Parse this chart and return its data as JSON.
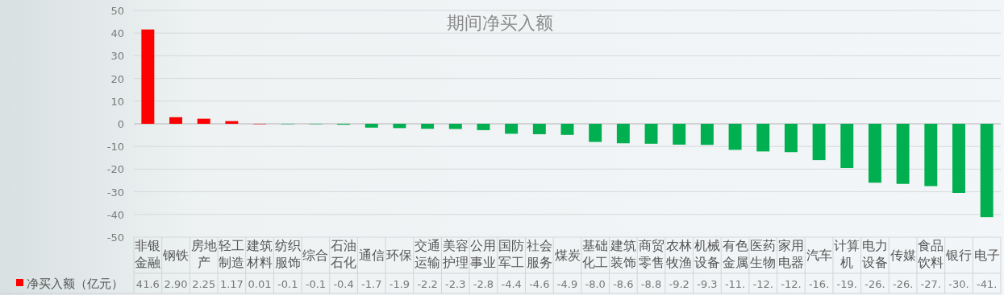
{
  "chart_data": {
    "type": "bar",
    "title": "期间净买入额",
    "categories": [
      "非银金融",
      "钢铁",
      "房地产",
      "轻工制造",
      "建筑材料",
      "纺织服饰",
      "综合",
      "石油石化",
      "通信",
      "环保",
      "交通运输",
      "美容护理",
      "公用事业",
      "国防军工",
      "社会服务",
      "煤炭",
      "基础化工",
      "建筑装饰",
      "商贸零售",
      "农林牧渔",
      "机械设备",
      "有色金属",
      "医药生物",
      "家用电器",
      "汽车",
      "计算机",
      "电力设备",
      "传媒",
      "食品饮料",
      "银行",
      "电子"
    ],
    "series": [
      {
        "name": "净买入额（亿元）",
        "color": "#ff0000",
        "values": [
          41.6,
          2.9,
          2.25,
          1.17,
          0.01,
          -0.1,
          -0.1,
          -0.4,
          -1.7,
          -1.9,
          -2.2,
          -2.3,
          -2.8,
          -4.4,
          -4.6,
          -4.9,
          -8.0,
          -8.6,
          -8.8,
          -9.2,
          -9.3,
          -11.5,
          -12.2,
          -12.5,
          -16.0,
          -19.5,
          -26.0,
          -26.5,
          -27.5,
          -30.5,
          -41.2
        ],
        "value_labels": [
          "41.6",
          "2.90",
          "2.25",
          "1.17",
          "0.01",
          "-0.1",
          "-0.1",
          "-0.4",
          "-1.7",
          "-1.9",
          "-2.2",
          "-2.3",
          "-2.8",
          "-4.4",
          "-4.6",
          "-4.9",
          "-8.0",
          "-8.6",
          "-8.8",
          "-9.2",
          "-9.3",
          "-11.",
          "-12.",
          "-12.",
          "-16.",
          "-19.",
          "-26.",
          "-26.",
          "-27.",
          "-30.",
          "-41."
        ],
        "colors": [
          "#ff0000",
          "#ff0000",
          "#ff0000",
          "#ff0000",
          "#ff0000",
          "#00b050",
          "#00b050",
          "#00b050",
          "#00b050",
          "#00b050",
          "#00b050",
          "#00b050",
          "#00b050",
          "#00b050",
          "#00b050",
          "#00b050",
          "#00b050",
          "#00b050",
          "#00b050",
          "#00b050",
          "#00b050",
          "#00b050",
          "#00b050",
          "#00b050",
          "#00b050",
          "#00b050",
          "#00b050",
          "#00b050",
          "#00b050",
          "#00b050",
          "#00b050"
        ]
      }
    ],
    "ylim": [
      -50,
      50
    ],
    "yticks": [
      -50,
      -40,
      -30,
      -20,
      -10,
      0,
      10,
      20,
      30,
      40,
      50
    ],
    "grid": "y",
    "legend": "bottom"
  }
}
